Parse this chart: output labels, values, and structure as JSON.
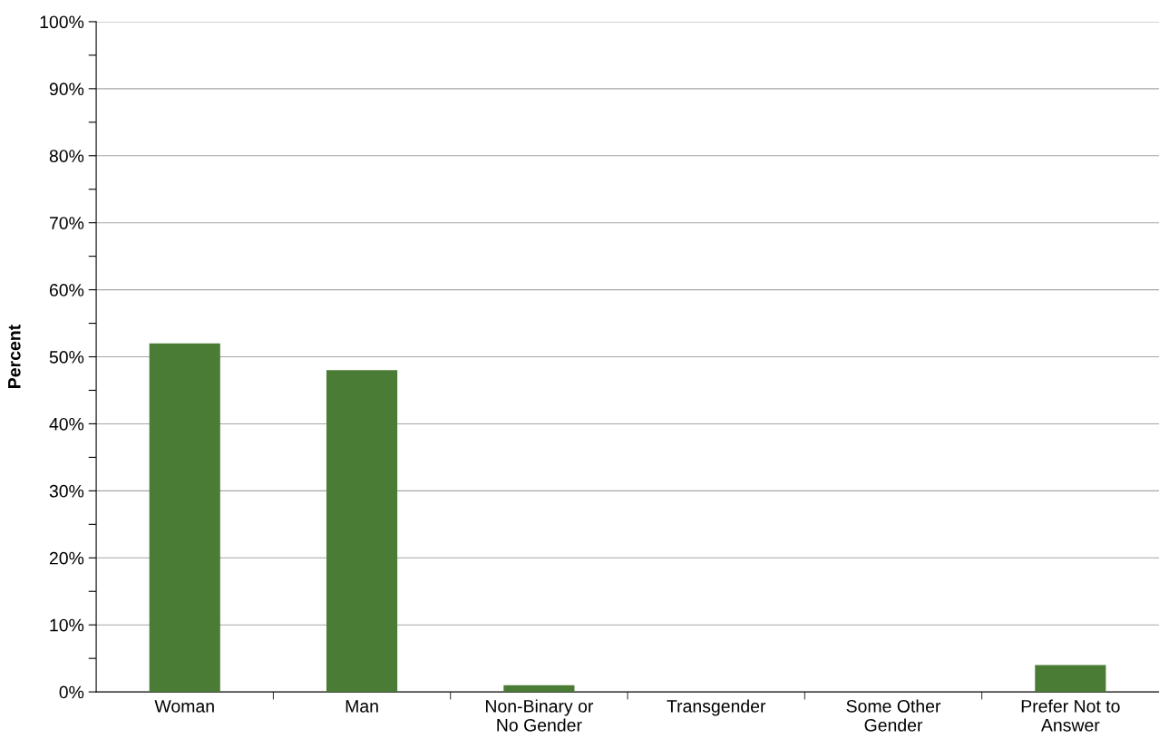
{
  "chart_data": {
    "type": "bar",
    "categories": [
      "Woman",
      "Man",
      "Non-Binary or\nNo Gender",
      "Transgender",
      "Some Other\nGender",
      "Prefer Not to\nAnswer"
    ],
    "values": [
      52,
      48,
      1,
      0,
      0,
      4
    ],
    "color": "#4a7c36",
    "ylabel": "Percent",
    "ylim": [
      0,
      100
    ],
    "yticks": [
      {
        "value": 0,
        "label": "0%"
      },
      {
        "value": 5,
        "label": null
      },
      {
        "value": 10,
        "label": "10%"
      },
      {
        "value": 15,
        "label": null
      },
      {
        "value": 20,
        "label": "20%"
      },
      {
        "value": 25,
        "label": null
      },
      {
        "value": 30,
        "label": "30%"
      },
      {
        "value": 35,
        "label": null
      },
      {
        "value": 40,
        "label": "40%"
      },
      {
        "value": 45,
        "label": null
      },
      {
        "value": 50,
        "label": "50%"
      },
      {
        "value": 55,
        "label": null
      },
      {
        "value": 60,
        "label": "60%"
      },
      {
        "value": 65,
        "label": null
      },
      {
        "value": 70,
        "label": "70%"
      },
      {
        "value": 75,
        "label": null
      },
      {
        "value": 80,
        "label": "80%"
      },
      {
        "value": 85,
        "label": null
      },
      {
        "value": 90,
        "label": "90%"
      },
      {
        "value": 95,
        "label": null
      },
      {
        "value": 100,
        "label": "100%"
      }
    ],
    "grid": "y"
  }
}
